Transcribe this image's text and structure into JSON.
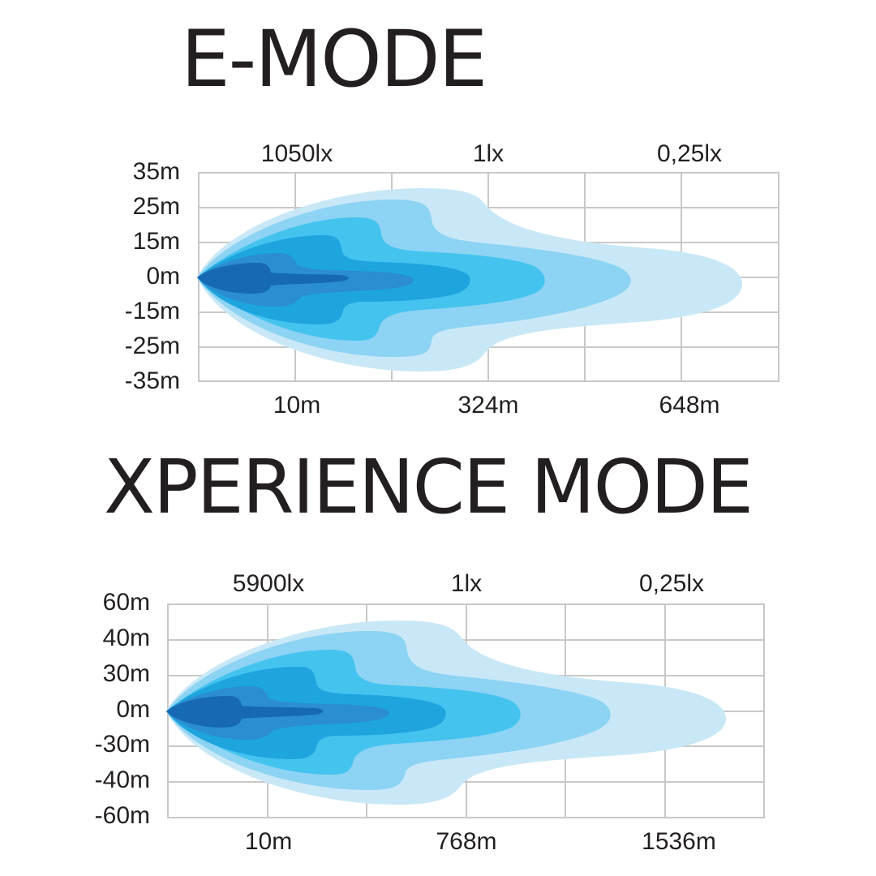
{
  "diagrams": [
    {
      "title": "E-MODE",
      "lux_labels": [
        "1050lx",
        "1lx",
        "0,25lx"
      ],
      "distance_labels": [
        "10m",
        "324m",
        "648m"
      ],
      "width_labels": [
        "35m",
        "25m",
        "15m",
        "0m",
        "-15m",
        "-25m",
        "-35m"
      ]
    },
    {
      "title": "XPERIENCE MODE",
      "lux_labels": [
        "5900lx",
        "1lx",
        "0,25lx"
      ],
      "distance_labels": [
        "10m",
        "768m",
        "1536m"
      ],
      "width_labels": [
        "60m",
        "40m",
        "30m",
        "0m",
        "-30m",
        "-40m",
        "-60m"
      ]
    }
  ],
  "colors": {
    "zones": [
      "#c9e8f7",
      "#8dd3f3",
      "#44c3ef",
      "#1ea5de",
      "#2a8ed0",
      "#1769b3"
    ],
    "grid": "#c8c8c8",
    "text": "#231f20"
  }
}
